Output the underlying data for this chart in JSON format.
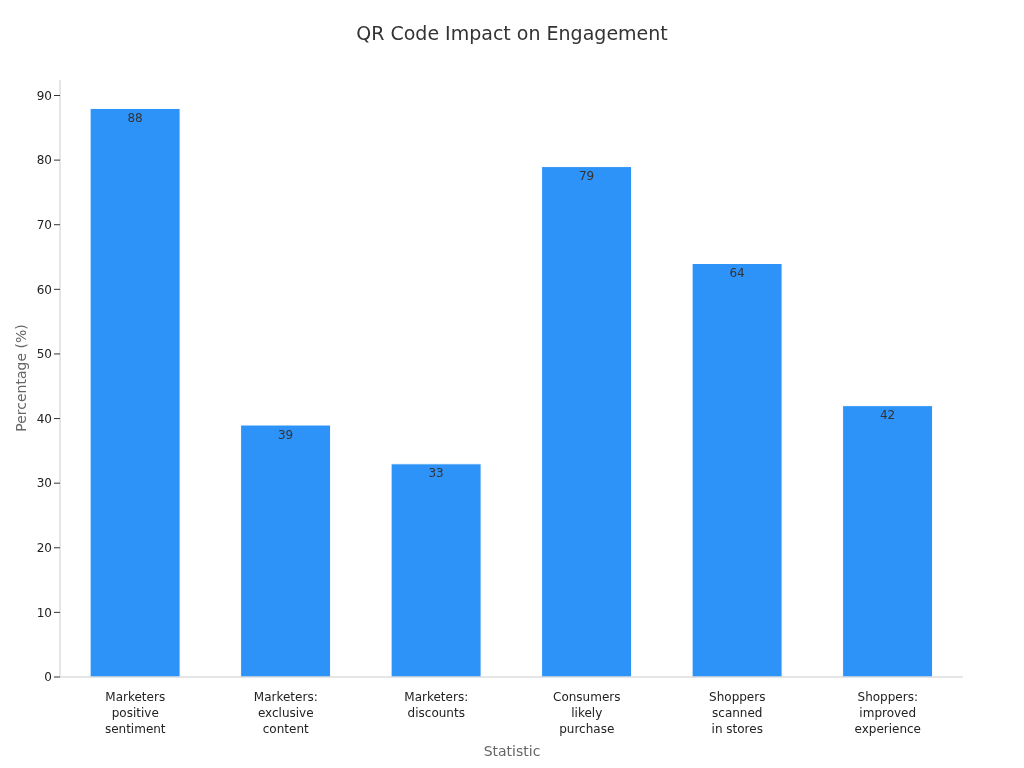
{
  "chart_data": {
    "type": "bar",
    "title": "QR Code Impact on Engagement",
    "xlabel": "Statistic",
    "ylabel": "Percentage (%)",
    "categories": [
      "Marketers\npositive\nsentiment",
      "Marketers:\nexclusive\ncontent",
      "Marketers:\ndiscounts",
      "Consumers\nlikely\npurchase",
      "Shoppers\nscanned\nin stores",
      "Shoppers:\nimproved\nexperience"
    ],
    "values": [
      88,
      39,
      33,
      79,
      64,
      42
    ],
    "color": "#2e93f8",
    "ylim": [
      0,
      92.4
    ],
    "yticks": [
      0,
      10,
      20,
      30,
      40,
      50,
      60,
      70,
      80,
      90
    ],
    "grid": false,
    "data_labels": true
  }
}
